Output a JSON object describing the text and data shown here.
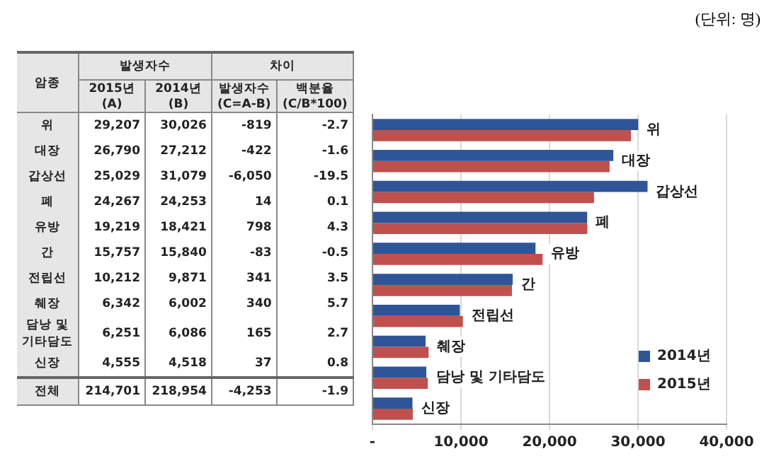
{
  "chart_data": {
    "type": "bar",
    "orientation": "horizontal",
    "categories": [
      "위",
      "대장",
      "갑상선",
      "폐",
      "유방",
      "간",
      "전립선",
      "췌장",
      "담낭 및 기타담도",
      "신장"
    ],
    "series": [
      {
        "name": "2014년",
        "color": "#2e5597",
        "values": [
          30026,
          27212,
          31079,
          24253,
          18421,
          15840,
          9871,
          6002,
          6086,
          4518
        ]
      },
      {
        "name": "2015년",
        "color": "#c0504d",
        "values": [
          29207,
          26790,
          25029,
          24267,
          19219,
          15757,
          10212,
          6342,
          6251,
          4555
        ]
      }
    ],
    "xlim": [
      0,
      40000
    ],
    "xticks": [
      {
        "value": 0,
        "label": "-"
      },
      {
        "value": 10000,
        "label": "10,000"
      },
      {
        "value": 20000,
        "label": "20,000"
      },
      {
        "value": 30000,
        "label": "30,000"
      },
      {
        "value": 40000,
        "label": "40,000"
      }
    ],
    "grid": "x",
    "legend": "bottom right",
    "tick_labels": "x",
    "annotations": [
      "(단위: 명)",
      "암종",
      "발생자수",
      "차이",
      "2015년\n(A)",
      "2014년\n(B)",
      "발생자수\n(C=A-B)",
      "백분율\n(C/B*100)",
      "29,207",
      "30,026",
      "-819",
      "-2.7",
      "26,790",
      "27,212",
      "-422",
      "-1.6",
      "25,029",
      "31,079",
      "-6,050",
      "-19.5",
      "24,267",
      "24,253",
      "14",
      "0.1",
      "19,219",
      "18,421",
      "798",
      "4.3",
      "15,757",
      "15,840",
      "-83",
      "-0.5",
      "10,212",
      "9,871",
      "341",
      "3.5",
      "6,342",
      "6,002",
      "340",
      "5.7",
      "6,251",
      "6,086",
      "165",
      "2.7",
      "4,555",
      "4,518",
      "37",
      "0.8",
      "전체",
      "214,701",
      "218,954",
      "-4,253",
      "-1.9"
    ]
  }
}
